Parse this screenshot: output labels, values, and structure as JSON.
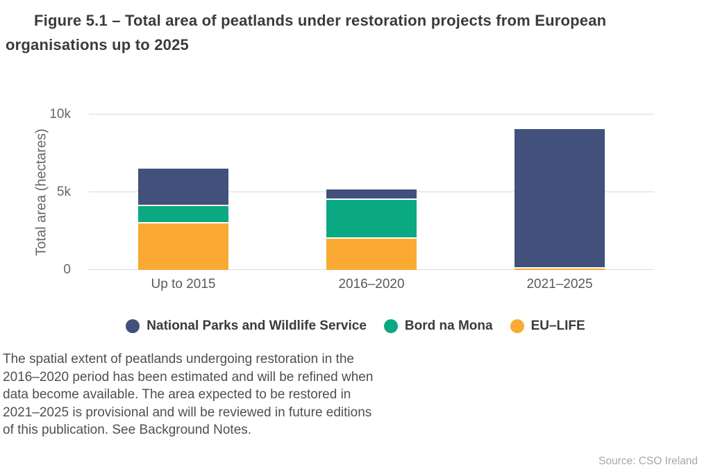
{
  "page": {
    "title_lines": [
      "Figure 5.1 – Total area of peatlands under restoration projects from European",
      "organisations up to 2025"
    ],
    "footnote_lines": [
      "The spatial extent of peatlands undergoing restoration in the",
      "2016–2020 period has been estimated and will be refined when",
      "data become available. The area expected to be restored in",
      "2021–2025 is provisional and will be reviewed in future editions",
      "of this publication. See Background Notes."
    ],
    "source": "Source: CSO Ireland"
  },
  "chart_data": {
    "type": "bar",
    "stacked": true,
    "title": "Figure 5.1 – Total area of peatlands under restoration projects from European organisations up to 2025",
    "xlabel": "",
    "ylabel": "Total area (hectares)",
    "categories": [
      "Up to 2015",
      "2016–2020",
      "2021–2025"
    ],
    "series": [
      {
        "name": "National Parks and Wildlife Service",
        "color": "#41517C",
        "values": [
          2300,
          600,
          8850
        ]
      },
      {
        "name": "Bord na Mona",
        "color": "#0BA982",
        "values": [
          1100,
          2500,
          0
        ]
      },
      {
        "name": "EU–LIFE",
        "color": "#FAAA33",
        "values": [
          3100,
          2100,
          200
        ]
      }
    ],
    "totals": [
      6500,
      5200,
      9050
    ],
    "stack_order_bottom_to_top": [
      "EU–LIFE",
      "Bord na Mona",
      "National Parks and Wildlife Service"
    ],
    "ylim": [
      0,
      10000
    ],
    "yticks": [
      {
        "value": 0,
        "label": "0"
      },
      {
        "value": 5000,
        "label": "5k"
      },
      {
        "value": 10000,
        "label": "10k"
      }
    ],
    "grid": true,
    "grid_color": "#D9D9D9",
    "legend_position": "bottom"
  }
}
